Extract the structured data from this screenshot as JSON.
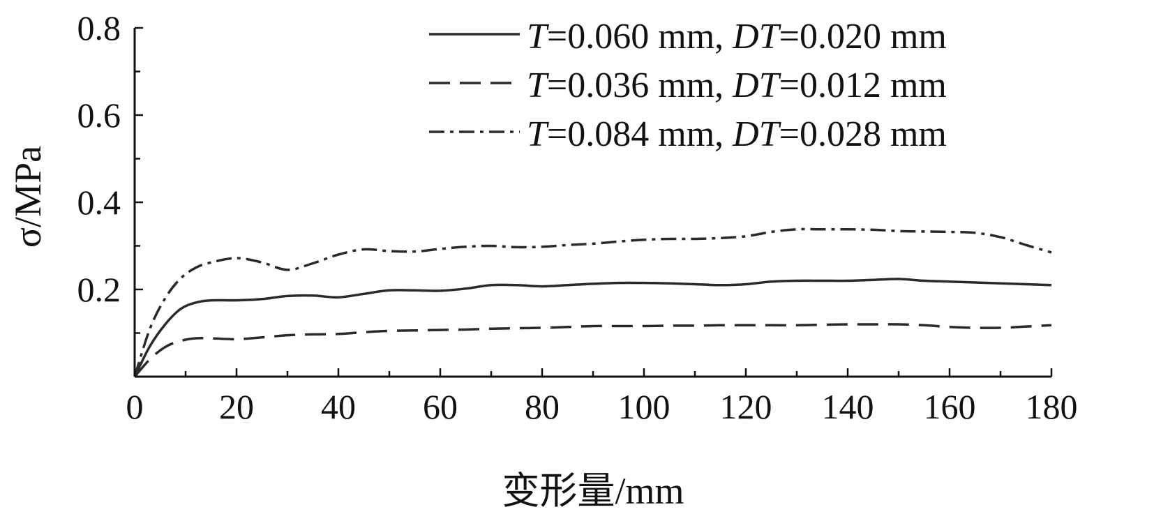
{
  "chart_data": {
    "type": "line",
    "xlabel": "变形量/mm",
    "ylabel": "σ/MPa",
    "xlim": [
      0,
      180
    ],
    "ylim": [
      0,
      0.8
    ],
    "xticks": [
      "0",
      "20",
      "40",
      "60",
      "80",
      "100",
      "120",
      "140",
      "160",
      "180"
    ],
    "yticks": [
      "0.2",
      "0.4",
      "0.6",
      "0.8"
    ],
    "grid": false,
    "legend_position": "top-right",
    "series": [
      {
        "name": "T=0.060 mm, DT=0.020 mm",
        "style": "solid",
        "x": [
          0,
          3,
          6,
          9,
          12,
          15,
          20,
          25,
          30,
          35,
          40,
          45,
          50,
          55,
          60,
          65,
          70,
          75,
          80,
          85,
          90,
          95,
          100,
          105,
          110,
          115,
          120,
          125,
          130,
          135,
          140,
          145,
          150,
          155,
          160,
          165,
          170,
          175,
          180
        ],
        "y": [
          0.0,
          0.07,
          0.12,
          0.155,
          0.17,
          0.175,
          0.175,
          0.178,
          0.185,
          0.186,
          0.182,
          0.19,
          0.198,
          0.198,
          0.197,
          0.202,
          0.21,
          0.21,
          0.207,
          0.21,
          0.213,
          0.215,
          0.215,
          0.214,
          0.212,
          0.21,
          0.212,
          0.218,
          0.22,
          0.22,
          0.22,
          0.222,
          0.224,
          0.22,
          0.218,
          0.216,
          0.214,
          0.212,
          0.21
        ]
      },
      {
        "name": "T=0.036 mm, DT=0.012 mm",
        "style": "dashed",
        "x": [
          0,
          3,
          6,
          9,
          12,
          15,
          20,
          25,
          30,
          35,
          40,
          45,
          50,
          55,
          60,
          65,
          70,
          75,
          80,
          85,
          90,
          95,
          100,
          105,
          110,
          115,
          120,
          125,
          130,
          135,
          140,
          145,
          150,
          155,
          160,
          165,
          170,
          175,
          180
        ],
        "y": [
          0.0,
          0.04,
          0.068,
          0.082,
          0.088,
          0.088,
          0.086,
          0.09,
          0.095,
          0.097,
          0.098,
          0.102,
          0.105,
          0.106,
          0.107,
          0.108,
          0.11,
          0.111,
          0.112,
          0.114,
          0.116,
          0.116,
          0.116,
          0.117,
          0.117,
          0.118,
          0.118,
          0.118,
          0.118,
          0.119,
          0.12,
          0.12,
          0.12,
          0.118,
          0.114,
          0.112,
          0.112,
          0.115,
          0.118
        ]
      },
      {
        "name": "T=0.084 mm, DT=0.028 mm",
        "style": "dashdot",
        "x": [
          0,
          3,
          6,
          9,
          12,
          15,
          20,
          25,
          30,
          35,
          40,
          45,
          50,
          55,
          60,
          65,
          70,
          75,
          80,
          85,
          90,
          95,
          100,
          105,
          110,
          115,
          120,
          125,
          130,
          135,
          140,
          145,
          150,
          155,
          160,
          165,
          170,
          175,
          180
        ],
        "y": [
          0.0,
          0.11,
          0.18,
          0.225,
          0.25,
          0.262,
          0.272,
          0.262,
          0.245,
          0.26,
          0.28,
          0.292,
          0.288,
          0.287,
          0.293,
          0.298,
          0.3,
          0.297,
          0.298,
          0.302,
          0.305,
          0.31,
          0.314,
          0.316,
          0.316,
          0.318,
          0.322,
          0.332,
          0.338,
          0.338,
          0.338,
          0.337,
          0.334,
          0.333,
          0.332,
          0.33,
          0.32,
          0.302,
          0.285
        ]
      }
    ]
  }
}
